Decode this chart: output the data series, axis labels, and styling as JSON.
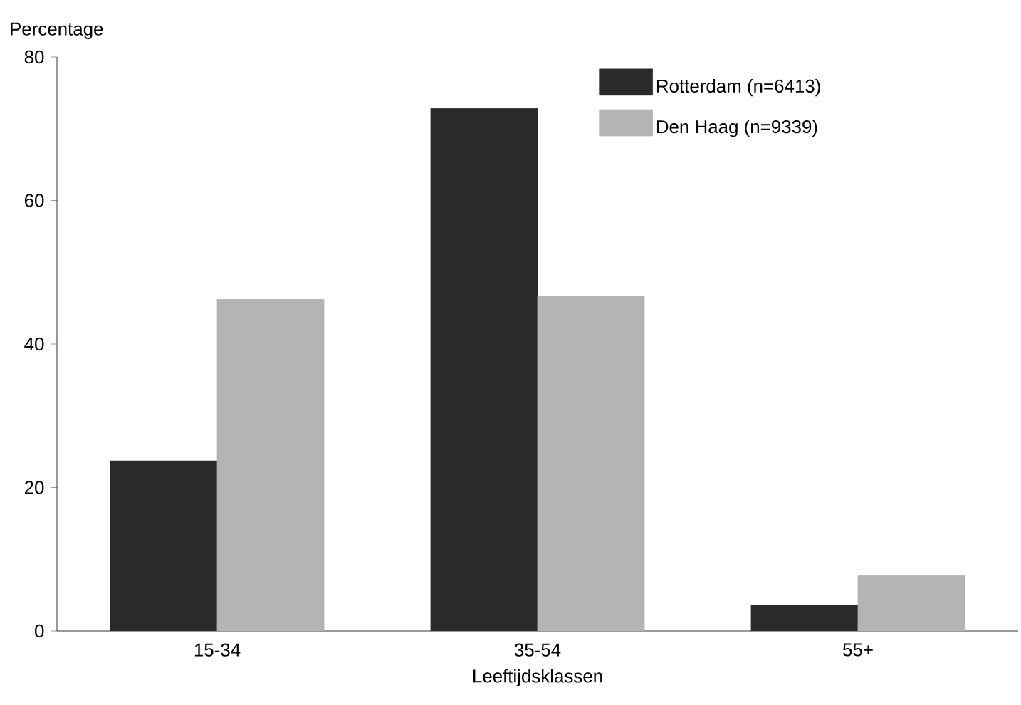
{
  "chart_data": {
    "type": "bar",
    "xlabel": "Leeftijdsklassen",
    "ylabel": "Percentage",
    "categories": [
      "15-34",
      "35-54",
      "55+"
    ],
    "series": [
      {
        "name": "Rotterdam (n=6413)",
        "color": "#2a2a2a",
        "values": [
          23.7,
          72.8,
          3.6
        ]
      },
      {
        "name": "Den Haag  (n=9339)",
        "color": "#b4b4b4",
        "values": [
          46.2,
          46.7,
          7.7
        ]
      }
    ],
    "ylim": [
      0,
      80
    ],
    "yticks": [
      0,
      20,
      40,
      60,
      80
    ],
    "legend": "top right"
  }
}
